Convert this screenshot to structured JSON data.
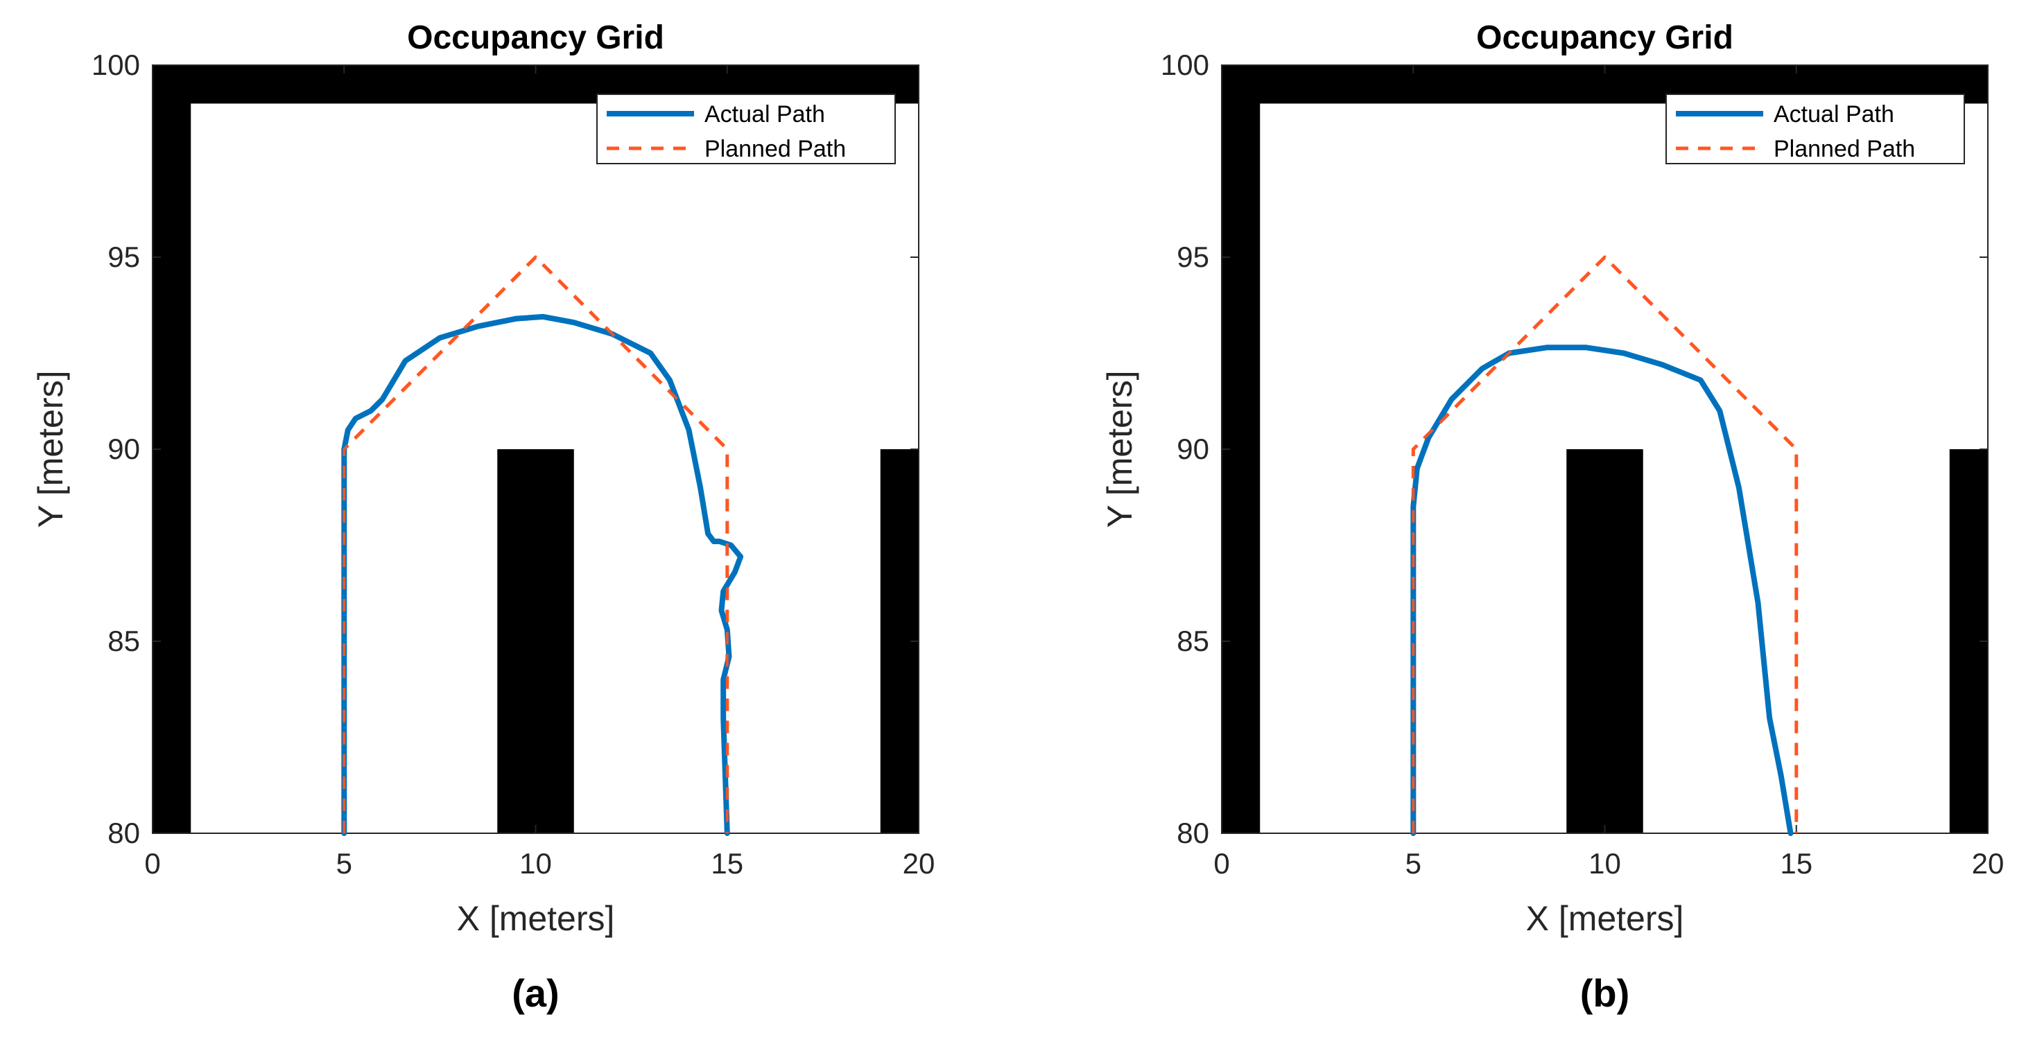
{
  "chart_data": [
    {
      "type": "line",
      "title": "Occupancy Grid",
      "xlabel": "X [meters]",
      "ylabel": "Y [meters]",
      "xlim": [
        0,
        20
      ],
      "ylim": [
        80,
        100
      ],
      "xticks": [
        "0",
        "5",
        "10",
        "15",
        "20"
      ],
      "yticks": [
        "80",
        "85",
        "90",
        "95",
        "100"
      ],
      "caption": "(a)",
      "legend": {
        "position": "top-right",
        "entries": [
          "Actual Path",
          "Planned Path"
        ]
      },
      "obstacles": [
        {
          "x": [
            0,
            20
          ],
          "y": [
            99,
            100
          ]
        },
        {
          "x": [
            0,
            1
          ],
          "y": [
            80,
            100
          ]
        },
        {
          "x": [
            9,
            11
          ],
          "y": [
            80,
            90
          ]
        },
        {
          "x": [
            19,
            20
          ],
          "y": [
            80,
            90
          ]
        }
      ],
      "series": [
        {
          "name": "Actual Path",
          "color": "#0072BD",
          "style": "solid",
          "x": [
            5,
            5,
            5.1,
            5.3,
            5.7,
            6.0,
            6.6,
            7.5,
            8.5,
            9.5,
            10.2,
            11.0,
            12.0,
            13.0,
            13.5,
            14.0,
            14.3,
            14.5,
            14.65,
            14.8,
            15.1,
            15.35,
            15.2,
            14.9,
            14.85,
            15.0,
            15.05,
            14.9,
            14.9,
            14.95,
            15.0
          ],
          "y": [
            80,
            90,
            90.5,
            90.8,
            91.0,
            91.3,
            92.3,
            92.9,
            93.2,
            93.4,
            93.45,
            93.3,
            93.0,
            92.5,
            91.8,
            90.5,
            89.0,
            87.8,
            87.6,
            87.6,
            87.5,
            87.2,
            86.8,
            86.3,
            85.8,
            85.3,
            84.6,
            84.0,
            83.0,
            81.5,
            80
          ]
        },
        {
          "name": "Planned Path",
          "color": "#FF5722",
          "style": "dashed",
          "x": [
            5,
            5,
            10,
            15,
            15
          ],
          "y": [
            80,
            90,
            95,
            90,
            80
          ]
        }
      ]
    },
    {
      "type": "line",
      "title": "Occupancy Grid",
      "xlabel": "X [meters]",
      "ylabel": "Y [meters]",
      "xlim": [
        0,
        20
      ],
      "ylim": [
        80,
        100
      ],
      "xticks": [
        "0",
        "5",
        "10",
        "15",
        "20"
      ],
      "yticks": [
        "80",
        "85",
        "90",
        "95",
        "100"
      ],
      "caption": "(b)",
      "legend": {
        "position": "top-right",
        "entries": [
          "Actual Path",
          "Planned Path"
        ]
      },
      "obstacles": [
        {
          "x": [
            0,
            20
          ],
          "y": [
            99,
            100
          ]
        },
        {
          "x": [
            0,
            1
          ],
          "y": [
            80,
            100
          ]
        },
        {
          "x": [
            9,
            11
          ],
          "y": [
            80,
            90
          ]
        },
        {
          "x": [
            19,
            20
          ],
          "y": [
            80,
            90
          ]
        }
      ],
      "series": [
        {
          "name": "Actual Path",
          "color": "#0072BD",
          "style": "solid",
          "x": [
            5,
            5,
            5.1,
            5.4,
            6.0,
            6.8,
            7.5,
            8.5,
            9.5,
            10.5,
            11.5,
            12.5,
            13.0,
            13.5,
            14.0,
            14.3,
            14.6,
            14.85
          ],
          "y": [
            80,
            88.5,
            89.5,
            90.3,
            91.3,
            92.1,
            92.5,
            92.65,
            92.65,
            92.5,
            92.2,
            91.8,
            91.0,
            89.0,
            86.0,
            83.0,
            81.5,
            80
          ]
        },
        {
          "name": "Planned Path",
          "color": "#FF5722",
          "style": "dashed",
          "x": [
            5,
            5,
            10,
            15,
            15
          ],
          "y": [
            80,
            90,
            95,
            90,
            80
          ]
        }
      ]
    }
  ]
}
